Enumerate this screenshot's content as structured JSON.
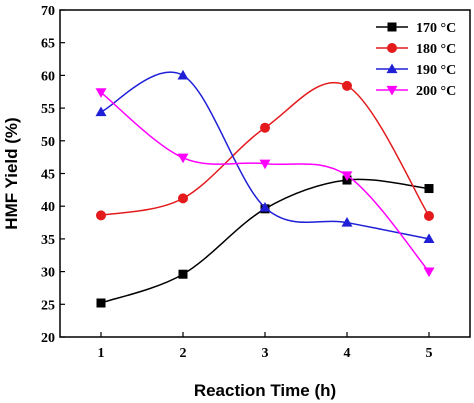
{
  "chart_data": {
    "type": "line",
    "title": "",
    "xlabel": "Reaction Time (h)",
    "ylabel": "HMF Yield (%)",
    "xlim": [
      0.5,
      5.5
    ],
    "ylim": [
      20,
      70
    ],
    "xticks": [
      "1",
      "2",
      "3",
      "4",
      "5"
    ],
    "yticks": [
      "20",
      "25",
      "30",
      "35",
      "40",
      "45",
      "50",
      "55",
      "60",
      "65",
      "70"
    ],
    "grid": false,
    "legend_position": "top-right",
    "x": [
      1,
      2,
      3,
      4,
      5
    ],
    "series": [
      {
        "name": "170 °C",
        "color": "#000000",
        "marker": "square",
        "values": [
          25.2,
          29.6,
          39.6,
          44.0,
          42.7
        ]
      },
      {
        "name": "180 °C",
        "color": "#e41a1c",
        "marker": "circle",
        "values": [
          38.6,
          41.2,
          52.0,
          58.4,
          38.5
        ]
      },
      {
        "name": "190 °C",
        "color": "#1f1fd8",
        "marker": "triangle-up",
        "values": [
          54.4,
          60.0,
          39.8,
          37.5,
          35.0
        ]
      },
      {
        "name": "200 °C",
        "color": "#ff00ff",
        "marker": "triangle-down",
        "values": [
          57.4,
          47.4,
          46.5,
          44.7,
          30.0
        ]
      }
    ]
  }
}
